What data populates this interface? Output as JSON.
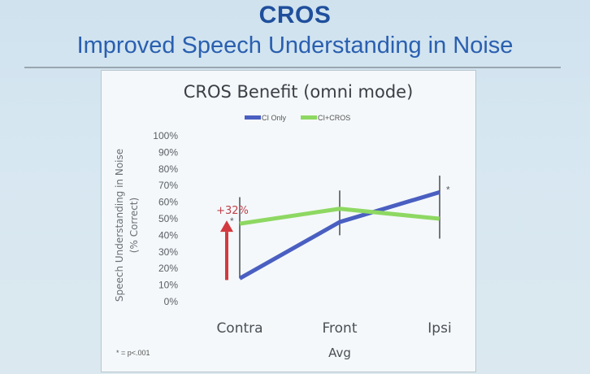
{
  "slide": {
    "title": "CROS",
    "subtitle": "Improved Speech Understanding in Noise"
  },
  "chart_data": {
    "type": "line",
    "title": "CROS Benefit (omni mode)",
    "xlabel": "Avg",
    "ylabel_line1": "Speech Understanding in Noise",
    "ylabel_line2": "(% Correct)",
    "categories": [
      "Contra",
      "Front",
      "Ipsi"
    ],
    "ylim": [
      0,
      100
    ],
    "yticks": [
      0,
      10,
      20,
      30,
      40,
      50,
      60,
      70,
      80,
      90,
      100
    ],
    "ytick_labels": [
      "0%",
      "10%",
      "20%",
      "30%",
      "40%",
      "50%",
      "60%",
      "70%",
      "80%",
      "90%",
      "100%"
    ],
    "legend_position": "top",
    "grid": false,
    "series": [
      {
        "name": "CI Only",
        "color": "#4a5fc1",
        "values": [
          14,
          48,
          66
        ]
      },
      {
        "name": "CI+CROS",
        "color": "#8ed862",
        "values": [
          47,
          56,
          50
        ]
      }
    ],
    "error_bars": [
      {
        "category": "Contra",
        "low": 14,
        "high": 63
      },
      {
        "category": "Front",
        "low": 40,
        "high": 67
      },
      {
        "category": "Ipsi",
        "low": 38,
        "high": 76
      }
    ],
    "significance_markers": [
      "Contra",
      "Ipsi"
    ],
    "annotation": {
      "text": "+32%",
      "category": "Contra",
      "from": 14,
      "to": 47,
      "color": "#d23a3f"
    },
    "footnote": "* = p<.001"
  }
}
